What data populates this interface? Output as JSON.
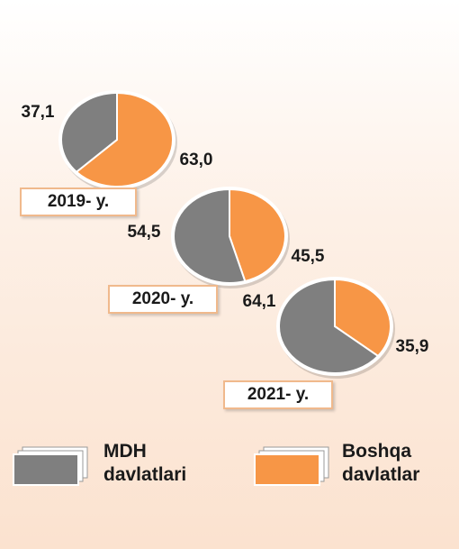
{
  "chart_data": [
    {
      "type": "pie",
      "title": "2019- y.",
      "categories": [
        "MDH davlatlari",
        "Boshqa davlatlar"
      ],
      "values": [
        37.1,
        63.0
      ],
      "value_labels": [
        "37,1",
        "63,0"
      ],
      "colors": [
        "#7f7f7f",
        "#f79646"
      ]
    },
    {
      "type": "pie",
      "title": "2020- y.",
      "categories": [
        "MDH davlatlari",
        "Boshqa davlatlar"
      ],
      "values": [
        54.5,
        45.5
      ],
      "value_labels": [
        "54,5",
        "45,5"
      ],
      "colors": [
        "#7f7f7f",
        "#f79646"
      ]
    },
    {
      "type": "pie",
      "title": "2021- y.",
      "categories": [
        "MDH davlatlari",
        "Boshqa davlatlar"
      ],
      "values": [
        64.1,
        35.9
      ],
      "value_labels": [
        "64,1",
        "35,9"
      ],
      "colors": [
        "#7f7f7f",
        "#f79646"
      ]
    }
  ]
}
